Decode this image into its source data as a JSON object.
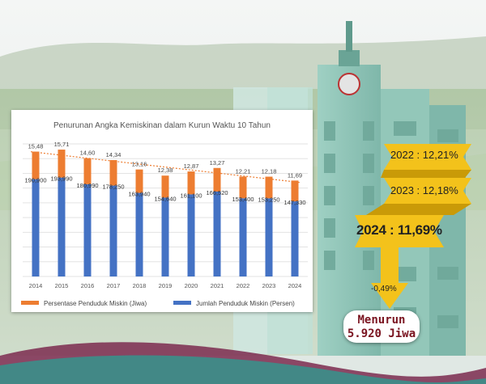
{
  "chart_data": {
    "type": "bar",
    "title": "Penurunan Angka Kemiskinan dalam Kurun Waktu 10 Tahun",
    "categories": [
      "2014",
      "2015",
      "2016",
      "2017",
      "2018",
      "2019",
      "2020",
      "2021",
      "2022",
      "2023",
      "2024"
    ],
    "series": [
      {
        "name": "Jumlah Penduduk Miskin (Persen)",
        "color": "#4472c4",
        "values": [
          190900,
          193990,
          180990,
          178250,
          163940,
          154640,
          161100,
          166520,
          153400,
          153250,
          147330
        ],
        "labels": [
          "190,900",
          "193,990",
          "180,990",
          "178,250",
          "163,940",
          "154,640",
          "161,100",
          "166,520",
          "153,400",
          "153,250",
          "147,330"
        ]
      },
      {
        "name": "Persentase Penduduk Miskin (Jiwa)",
        "color": "#ed7d31",
        "values": [
          15.48,
          15.71,
          14.6,
          14.34,
          13.16,
          12.38,
          12.87,
          13.27,
          12.21,
          12.18,
          11.69
        ],
        "labels": [
          "15,48",
          "15,71",
          "14,60",
          "14,34",
          "13,16",
          "12,38",
          "12,87",
          "13,27",
          "12,21",
          "12,18",
          "11,69"
        ]
      }
    ],
    "trendline": {
      "series": "Persentase Penduduk Miskin (Jiwa)",
      "color": "#ed7d31",
      "style": "dotted"
    },
    "legend": "bottom",
    "grid": true
  },
  "callouts": {
    "tag_2022": "2022 : 12,21%",
    "tag_2023": "2023 : 12,18%",
    "tag_2024": "2024 : 11,69%",
    "arrow_label": "-0,49%",
    "result_line1": "Menurun",
    "result_line2": "5.920 Jiwa"
  },
  "colors": {
    "gold": "#f3c21b",
    "gold_dark": "#c99a08",
    "accent_red": "#7a1420"
  }
}
